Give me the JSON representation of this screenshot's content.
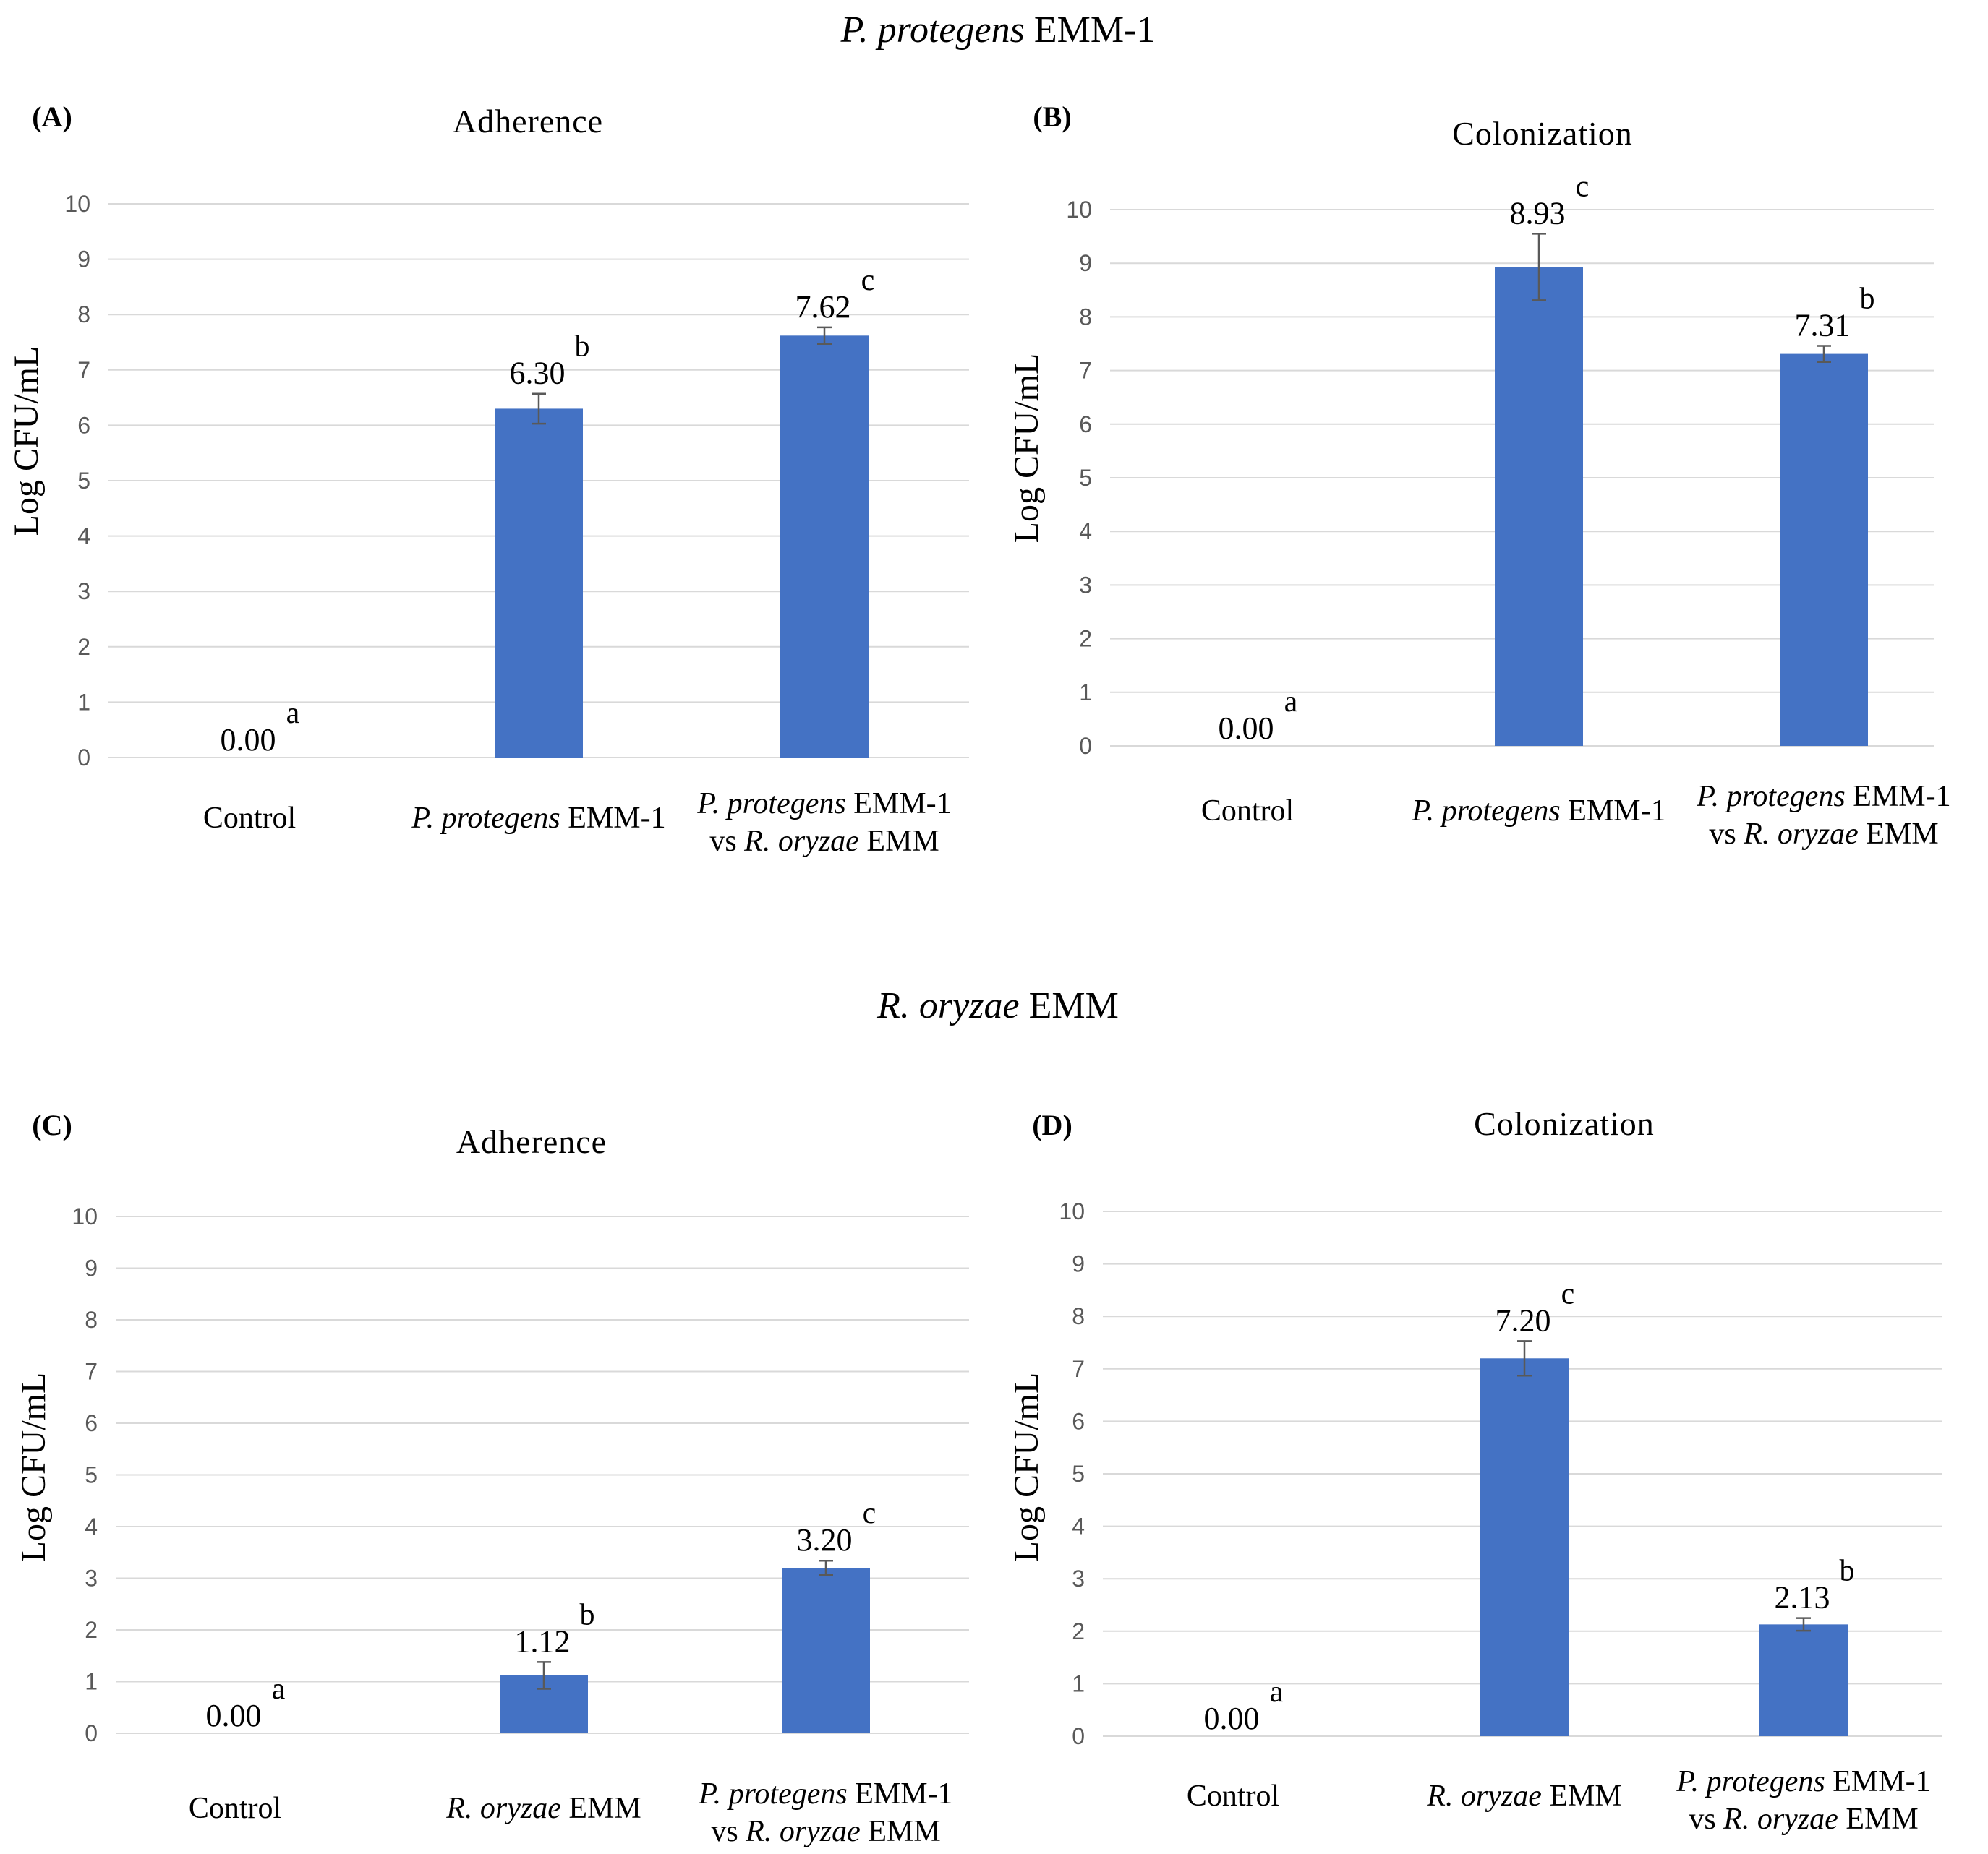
{
  "figure": {
    "section_titles": [
      {
        "italic": "P. protegens",
        "plain": " EMM-1"
      },
      {
        "italic": "R. oryzae",
        "plain": " EMM"
      }
    ]
  },
  "chart_data": [
    {
      "type": "bar",
      "panel": "(A)",
      "title": "Adherence",
      "ylabel": "Log CFU/mL",
      "ylim": [
        0,
        10
      ],
      "yticks": [
        "0",
        "1",
        "2",
        "3",
        "4",
        "5",
        "6",
        "7",
        "8",
        "9",
        "10"
      ],
      "categories": [
        {
          "lines": [
            [
              {
                "t": "Control",
                "i": false
              }
            ]
          ]
        },
        {
          "lines": [
            [
              {
                "t": "P. protegens",
                "i": true
              },
              {
                "t": " EMM-1",
                "i": false
              }
            ]
          ]
        },
        {
          "lines": [
            [
              {
                "t": "P. protegens",
                "i": true
              },
              {
                "t": " EMM-1",
                "i": false
              }
            ],
            [
              {
                "t": "vs ",
                "i": false
              },
              {
                "t": "R. oryzae",
                "i": true
              },
              {
                "t": " EMM",
                "i": false
              }
            ]
          ]
        }
      ],
      "values": [
        0.0,
        6.3,
        7.62
      ],
      "value_labels": [
        "0.00",
        "6.30",
        "7.62"
      ],
      "errors": [
        0,
        0.27,
        0.15
      ],
      "significance": [
        "a",
        "b",
        "c"
      ]
    },
    {
      "type": "bar",
      "panel": "(B)",
      "title": "Colonization",
      "ylabel": "Log CFU/mL",
      "ylim": [
        0,
        10
      ],
      "yticks": [
        "0",
        "1",
        "2",
        "3",
        "4",
        "5",
        "6",
        "7",
        "8",
        "9",
        "10"
      ],
      "categories": [
        {
          "lines": [
            [
              {
                "t": "Control",
                "i": false
              }
            ]
          ]
        },
        {
          "lines": [
            [
              {
                "t": "P. protegens",
                "i": true
              },
              {
                "t": " EMM-1",
                "i": false
              }
            ]
          ]
        },
        {
          "lines": [
            [
              {
                "t": "P. protegens",
                "i": true
              },
              {
                "t": " EMM-1",
                "i": false
              }
            ],
            [
              {
                "t": "vs ",
                "i": false
              },
              {
                "t": "R. oryzae",
                "i": true
              },
              {
                "t": " EMM",
                "i": false
              }
            ]
          ]
        }
      ],
      "values": [
        0.0,
        8.93,
        7.31
      ],
      "value_labels": [
        "0.00",
        "8.93",
        "7.31"
      ],
      "errors": [
        0,
        0.62,
        0.15
      ],
      "significance": [
        "a",
        "c",
        "b"
      ]
    },
    {
      "type": "bar",
      "panel": "(C)",
      "title": "Adherence",
      "ylabel": "Log CFU/mL",
      "ylim": [
        0,
        10
      ],
      "yticks": [
        "0",
        "1",
        "2",
        "3",
        "4",
        "5",
        "6",
        "7",
        "8",
        "9",
        "10"
      ],
      "categories": [
        {
          "lines": [
            [
              {
                "t": "Control",
                "i": false
              }
            ]
          ]
        },
        {
          "lines": [
            [
              {
                "t": "R. oryzae",
                "i": true
              },
              {
                "t": " EMM",
                "i": false
              }
            ]
          ]
        },
        {
          "lines": [
            [
              {
                "t": "P. protegens",
                "i": true
              },
              {
                "t": " EMM-1",
                "i": false
              }
            ],
            [
              {
                "t": "vs ",
                "i": false
              },
              {
                "t": "R. oryzae",
                "i": true
              },
              {
                "t": " EMM",
                "i": false
              }
            ]
          ]
        }
      ],
      "values": [
        0.0,
        1.12,
        3.2
      ],
      "value_labels": [
        "0.00",
        "1.12",
        "3.20"
      ],
      "errors": [
        0,
        0.26,
        0.14
      ],
      "significance": [
        "a",
        "b",
        "c"
      ]
    },
    {
      "type": "bar",
      "panel": "(D)",
      "title": "Colonization",
      "ylabel": "Log CFU/mL",
      "ylim": [
        0,
        10
      ],
      "yticks": [
        "0",
        "1",
        "2",
        "3",
        "4",
        "5",
        "6",
        "7",
        "8",
        "9",
        "10"
      ],
      "categories": [
        {
          "lines": [
            [
              {
                "t": "Control",
                "i": false
              }
            ]
          ]
        },
        {
          "lines": [
            [
              {
                "t": "R. oryzae",
                "i": true
              },
              {
                "t": " EMM",
                "i": false
              }
            ]
          ]
        },
        {
          "lines": [
            [
              {
                "t": "P. protegens",
                "i": true
              },
              {
                "t": " EMM-1",
                "i": false
              }
            ],
            [
              {
                "t": "vs ",
                "i": false
              },
              {
                "t": "R. oryzae",
                "i": true
              },
              {
                "t": " EMM",
                "i": false
              }
            ]
          ]
        }
      ],
      "values": [
        0.0,
        7.2,
        2.13
      ],
      "value_labels": [
        "0.00",
        "7.20",
        "2.13"
      ],
      "errors": [
        0,
        0.33,
        0.12
      ],
      "significance": [
        "a",
        "c",
        "b"
      ]
    }
  ]
}
